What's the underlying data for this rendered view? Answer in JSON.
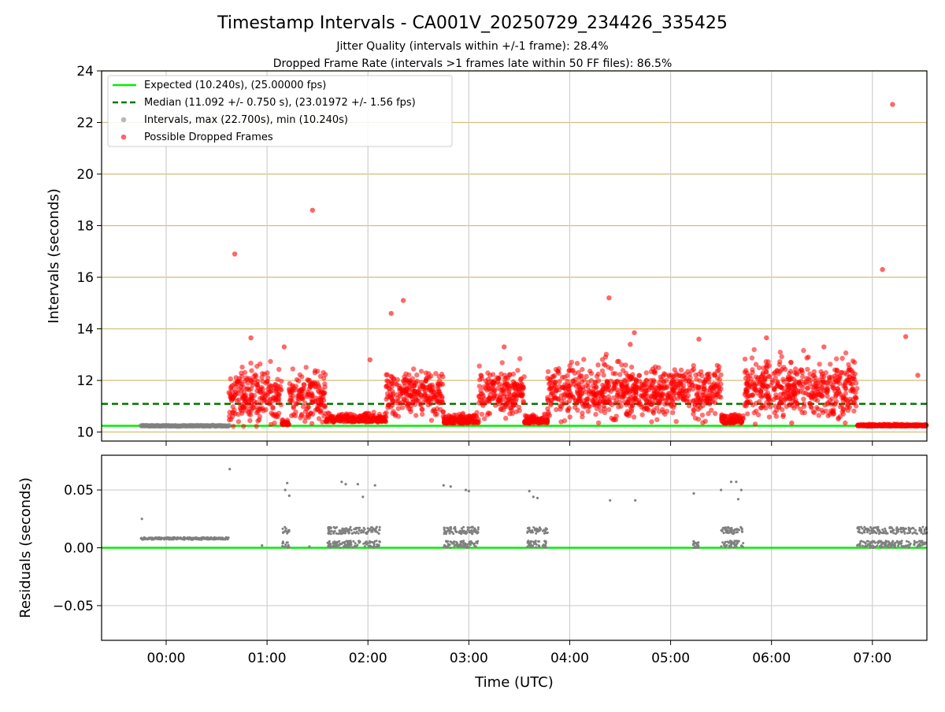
{
  "figure": {
    "title": "Timestamp Intervals - CA001V_20250729_234426_335425",
    "subtitle_1": "Jitter Quality (intervals within +/-1 frame): 28.4%",
    "subtitle_2": "Dropped Frame Rate (intervals >1 frames late within 50 FF files): 86.5%",
    "xlabel": "Time (UTC)"
  },
  "legend": {
    "expected": "Expected (10.240s), (25.00000 fps)",
    "median": "Median (11.092 +/- 0.750 s), (23.01972 +/- 1.56 fps)",
    "intervals": "Intervals, max (22.700s), min (10.240s)",
    "dropped": "Possible Dropped Frames"
  },
  "colors": {
    "expected": "#00ee00",
    "median": "#007700",
    "intervals": "#808080",
    "dropped": "#ff0000",
    "top_grid": "#d2be78",
    "bottom_grid": "#cfcfcf"
  },
  "chart_data": [
    {
      "type": "scatter",
      "ylabel": "Intervals (seconds)",
      "ylim": [
        9.65,
        24.0
      ],
      "yticks": [
        "10",
        "12",
        "14",
        "16",
        "18",
        "20",
        "22",
        "24"
      ],
      "xlim_hours": [
        -0.64,
        7.54
      ],
      "xticks": [
        "00:00",
        "01:00",
        "02:00",
        "03:00",
        "04:00",
        "05:00",
        "06:00",
        "07:00"
      ],
      "grid": "horizontal",
      "legend_position": "upper-left",
      "expected_interval": 10.24,
      "median_interval": 11.092,
      "series": [
        {
          "name": "Intervals, max (22.700s), min (10.240s)",
          "note": "regular intervals in hours UTC",
          "segments": [
            {
              "start": -0.25,
              "end": 0.63,
              "value": 10.24
            },
            {
              "start": 6.9,
              "end": 7.54,
              "value": 10.24
            }
          ]
        },
        {
          "name": "Possible Dropped Frames",
          "outliers": [
            [
              0.68,
              16.9
            ],
            [
              1.45,
              18.6
            ],
            [
              2.23,
              14.6
            ],
            [
              2.35,
              15.1
            ],
            [
              4.39,
              15.2
            ],
            [
              7.1,
              16.3
            ],
            [
              7.2,
              22.7
            ],
            [
              7.33,
              13.7
            ],
            [
              7.45,
              12.2
            ],
            [
              0.84,
              13.65
            ],
            [
              4.64,
              13.85
            ],
            [
              5.28,
              13.6
            ],
            [
              5.95,
              13.65
            ],
            [
              6.52,
              13.3
            ],
            [
              2.02,
              12.8
            ],
            [
              6.2,
              10.35
            ],
            [
              1.17,
              13.3
            ],
            [
              3.35,
              13.3
            ],
            [
              4.6,
              13.4
            ]
          ],
          "clusters": [
            {
              "start": 0.62,
              "end": 1.15,
              "mean": 11.4,
              "spread": 1.2
            },
            {
              "start": 1.15,
              "end": 1.22,
              "mean": 10.3,
              "spread": 0.15
            },
            {
              "start": 1.22,
              "end": 1.58,
              "mean": 11.4,
              "spread": 1.1
            },
            {
              "start": 1.58,
              "end": 2.18,
              "mean": 10.45,
              "spread": 0.3
            },
            {
              "start": 2.18,
              "end": 2.75,
              "mean": 11.5,
              "spread": 0.9
            },
            {
              "start": 2.75,
              "end": 3.1,
              "mean": 10.4,
              "spread": 0.3
            },
            {
              "start": 3.1,
              "end": 3.55,
              "mean": 11.5,
              "spread": 1.0
            },
            {
              "start": 3.55,
              "end": 3.78,
              "mean": 10.4,
              "spread": 0.3
            },
            {
              "start": 3.78,
              "end": 5.22,
              "mean": 11.6,
              "spread": 1.1
            },
            {
              "start": 5.22,
              "end": 5.32,
              "mean": 11.5,
              "spread": 1.3
            },
            {
              "start": 5.32,
              "end": 5.5,
              "mean": 11.6,
              "spread": 1.0
            },
            {
              "start": 5.5,
              "end": 5.72,
              "mean": 10.4,
              "spread": 0.3
            },
            {
              "start": 5.72,
              "end": 6.85,
              "mean": 11.7,
              "spread": 1.2
            },
            {
              "start": 6.85,
              "end": 7.54,
              "mean": 10.25,
              "spread": 0.05
            }
          ]
        }
      ]
    },
    {
      "type": "scatter",
      "ylabel": "Residuals (seconds)",
      "ylim": [
        -0.08,
        0.08
      ],
      "yticks": [
        "−0.05",
        "0.00",
        "0.05"
      ],
      "xlim_hours": [
        -0.64,
        7.54
      ],
      "xticks": [
        "00:00",
        "01:00",
        "02:00",
        "03:00",
        "04:00",
        "05:00",
        "06:00",
        "07:00"
      ],
      "grid": "both",
      "zero_line": 0.0,
      "series": [
        {
          "name": "Residuals",
          "baseline_band": {
            "start": -0.25,
            "end": 0.62,
            "value": 0.008
          },
          "outliers": [
            [
              -0.24,
              0.025
            ],
            [
              0.63,
              0.068
            ],
            [
              0.95,
              0.002
            ],
            [
              1.18,
              0.05
            ],
            [
              1.2,
              0.056
            ],
            [
              1.22,
              0.045
            ],
            [
              1.42,
              0.001
            ],
            [
              1.74,
              0.057
            ],
            [
              1.78,
              0.055
            ],
            [
              1.9,
              0.055
            ],
            [
              1.95,
              0.044
            ],
            [
              2.07,
              0.054
            ],
            [
              2.75,
              0.054
            ],
            [
              2.82,
              0.053
            ],
            [
              2.97,
              0.05
            ],
            [
              3.0,
              0.049
            ],
            [
              3.6,
              0.049
            ],
            [
              3.64,
              0.044
            ],
            [
              3.68,
              0.043
            ],
            [
              4.4,
              0.041
            ],
            [
              4.65,
              0.041
            ],
            [
              5.23,
              0.047
            ],
            [
              5.5,
              0.05
            ],
            [
              5.6,
              0.057
            ],
            [
              5.65,
              0.057
            ],
            [
              5.7,
              0.05
            ],
            [
              5.67,
              0.042
            ]
          ],
          "clusters": [
            {
              "start": 1.15,
              "end": 1.22,
              "low": 0.0,
              "high": 0.018
            },
            {
              "start": 1.6,
              "end": 2.12,
              "low": 0.0,
              "high": 0.018
            },
            {
              "start": 2.75,
              "end": 3.1,
              "low": 0.0,
              "high": 0.018
            },
            {
              "start": 3.58,
              "end": 3.78,
              "low": 0.0,
              "high": 0.018
            },
            {
              "start": 5.22,
              "end": 5.28,
              "low": 0.0,
              "high": 0.004
            },
            {
              "start": 5.5,
              "end": 5.72,
              "low": 0.0,
              "high": 0.018
            },
            {
              "start": 6.85,
              "end": 7.54,
              "low": 0.0,
              "high": 0.018
            }
          ]
        }
      ]
    }
  ]
}
